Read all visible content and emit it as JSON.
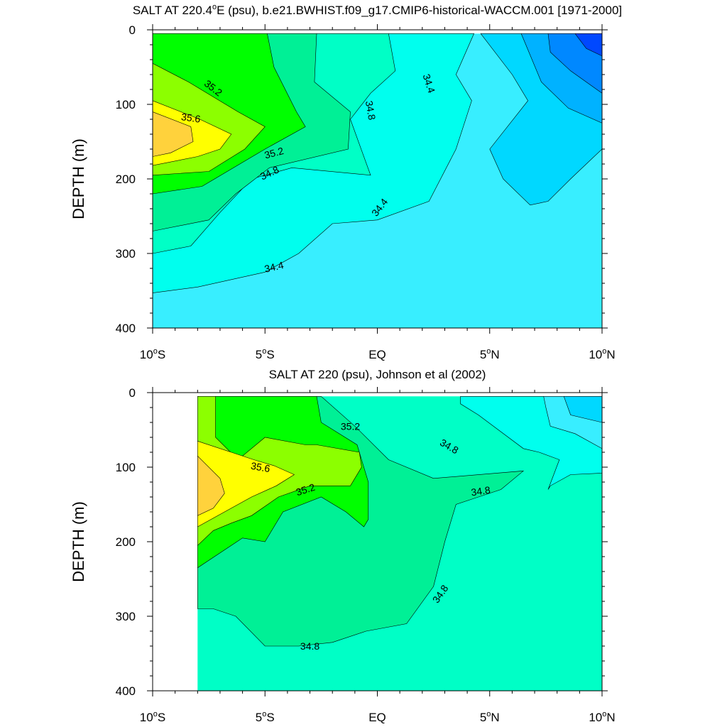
{
  "colors": {
    "s33.6": "#0048ff",
    "s33.8": "#0088ff",
    "s34.0": "#00b2ff",
    "s34.2": "#00d8ff",
    "s34.4": "#38eeff",
    "s34.6": "#00ffee",
    "s34.8": "#00ffc6",
    "s35.0": "#00f096",
    "s35.2": "#00ff00",
    "s35.4": "#8cff00",
    "s35.6": "#ffff00",
    "s35.8": "#ffd23c"
  },
  "chart_data": [
    {
      "type": "contour",
      "title": "SALT AT 220.4°E (psu), b.e21.BWHIST.f09_g17.CMIP6-historical-WACCM.001 [1971-2000]",
      "title_main": "SALT AT 220.4",
      "title_sup": "o",
      "title_rest": "E (psu), b.e21.BWHIST.f09_g17.CMIP6-historical-WACCM.001 [1971-2000]",
      "xlabel": "",
      "ylabel": "DEPTH (m)",
      "xlim": [
        -10,
        10
      ],
      "ylim": [
        400,
        0
      ],
      "x_ticks": [
        {
          "value": -10,
          "main": "10",
          "sup": "o",
          "rest": "S"
        },
        {
          "value": -5,
          "main": "5",
          "sup": "o",
          "rest": "S"
        },
        {
          "value": 0,
          "main": "EQ",
          "sup": "",
          "rest": ""
        },
        {
          "value": 5,
          "main": "5",
          "sup": "o",
          "rest": "N"
        },
        {
          "value": 10,
          "main": "10",
          "sup": "o",
          "rest": "N"
        }
      ],
      "y_ticks": [
        0,
        100,
        200,
        300,
        400
      ],
      "data_xlim": [
        -10,
        10
      ],
      "levels": [
        {
          "value": 34.6,
          "color": "s34.6",
          "polygon": [
            [
              -10,
              5
            ],
            [
              4.3,
              5
            ],
            [
              3.5,
              60
            ],
            [
              4.2,
              95
            ],
            [
              3.5,
              160
            ],
            [
              2.3,
              230
            ],
            [
              0,
              255
            ],
            [
              -2,
              260
            ],
            [
              -3.5,
              300
            ],
            [
              -5,
              325
            ],
            [
              -8,
              345
            ],
            [
              -10,
              353
            ]
          ]
        },
        {
          "value": 34.8,
          "color": "s34.8",
          "polygon": [
            [
              -10,
              5
            ],
            [
              0.5,
              5
            ],
            [
              0.8,
              55
            ],
            [
              -0.3,
              85
            ],
            [
              -1.2,
              120
            ],
            [
              -0.3,
              195
            ],
            [
              -3.8,
              185
            ],
            [
              -5.6,
              200
            ],
            [
              -7,
              245
            ],
            [
              -8.3,
              290
            ],
            [
              -10,
              300
            ]
          ]
        },
        {
          "value": 35.0,
          "color": "s35.0",
          "polygon": [
            [
              -10,
              5
            ],
            [
              -2.7,
              5
            ],
            [
              -2.8,
              70
            ],
            [
              -1.2,
              110
            ],
            [
              -1.3,
              160
            ],
            [
              -4.8,
              185
            ],
            [
              -6.3,
              220
            ],
            [
              -7.5,
              255
            ],
            [
              -10,
              270
            ]
          ]
        },
        {
          "value": 35.2,
          "color": "s35.2",
          "polygon": [
            [
              -10,
              5
            ],
            [
              -4.9,
              5
            ],
            [
              -4.6,
              50
            ],
            [
              -3.6,
              110
            ],
            [
              -3.2,
              130
            ],
            [
              -5.0,
              160
            ],
            [
              -7.8,
              210
            ],
            [
              -10,
              220
            ]
          ]
        },
        {
          "value": 35.4,
          "color": "s35.4",
          "polygon": [
            [
              -10,
              45
            ],
            [
              -8.4,
              70
            ],
            [
              -6.2,
              110
            ],
            [
              -5,
              130
            ],
            [
              -5.9,
              160
            ],
            [
              -7.5,
              190
            ],
            [
              -10,
              195
            ]
          ]
        },
        {
          "value": 35.6,
          "color": "s35.6",
          "polygon": [
            [
              -10,
              95
            ],
            [
              -7.9,
              120
            ],
            [
              -6.5,
              140
            ],
            [
              -7,
              160
            ],
            [
              -8,
              170
            ],
            [
              -10,
              182
            ]
          ]
        },
        {
          "value": 35.8,
          "color": "s35.8",
          "polygon": [
            [
              -10,
              110
            ],
            [
              -8.3,
              130
            ],
            [
              -8.2,
              150
            ],
            [
              -9.2,
              165
            ],
            [
              -10,
              170
            ]
          ]
        },
        {
          "value": 34.2,
          "color": "s34.2",
          "polygon": [
            [
              4.6,
              5
            ],
            [
              10,
              5
            ],
            [
              10,
              160
            ],
            [
              8.6,
              200
            ],
            [
              7.6,
              230
            ],
            [
              6.8,
              235
            ],
            [
              5.6,
              200
            ],
            [
              5,
              160
            ],
            [
              6.7,
              95
            ],
            [
              6,
              60
            ]
          ]
        },
        {
          "value": 34.0,
          "color": "s34.0",
          "polygon": [
            [
              6.4,
              5
            ],
            [
              10,
              5
            ],
            [
              10,
              125
            ],
            [
              8.5,
              105
            ],
            [
              7.3,
              70
            ]
          ]
        },
        {
          "value": 33.8,
          "color": "s33.8",
          "polygon": [
            [
              7.6,
              5
            ],
            [
              10,
              5
            ],
            [
              10,
              85
            ],
            [
              8.6,
              55
            ],
            [
              7.7,
              30
            ]
          ]
        },
        {
          "value": 33.6,
          "color": "s33.6",
          "polygon": [
            [
              8.8,
              5
            ],
            [
              10,
              5
            ],
            [
              10,
              35
            ],
            [
              9.3,
              25
            ]
          ]
        }
      ],
      "background_color": "s34.4",
      "contour_labels": [
        {
          "text": "35.2",
          "x": -7.3,
          "y": 78,
          "angle": 38
        },
        {
          "text": "35.6",
          "x": -8.3,
          "y": 118,
          "angle": 8
        },
        {
          "text": "35.2",
          "x": -4.6,
          "y": 165,
          "angle": -15
        },
        {
          "text": "34.8",
          "x": -4.8,
          "y": 192,
          "angle": -25
        },
        {
          "text": "34.8",
          "x": -0.3,
          "y": 108,
          "angle": 80
        },
        {
          "text": "34.4",
          "x": 2.3,
          "y": 72,
          "angle": 72
        },
        {
          "text": "34.4",
          "x": 0.1,
          "y": 238,
          "angle": -52
        },
        {
          "text": "34.4",
          "x": -4.6,
          "y": 318,
          "angle": -13
        }
      ]
    },
    {
      "type": "contour",
      "title": "SALT AT 220 (psu), Johnson et al (2002)",
      "title_main": "SALT AT 220 (psu), Johnson et al (2002)",
      "title_sup": "",
      "title_rest": "",
      "xlabel": "",
      "ylabel": "DEPTH (m)",
      "xlim": [
        -10,
        10
      ],
      "ylim": [
        400,
        0
      ],
      "x_ticks": [
        {
          "value": -10,
          "main": "10",
          "sup": "o",
          "rest": "S"
        },
        {
          "value": -5,
          "main": "5",
          "sup": "o",
          "rest": "S"
        },
        {
          "value": 0,
          "main": "EQ",
          "sup": "",
          "rest": ""
        },
        {
          "value": 5,
          "main": "5",
          "sup": "o",
          "rest": "N"
        },
        {
          "value": 10,
          "main": "10",
          "sup": "o",
          "rest": "N"
        }
      ],
      "y_ticks": [
        0,
        100,
        200,
        300,
        400
      ],
      "data_xlim": [
        -8,
        10
      ],
      "levels": [
        {
          "value": 35.0,
          "color": "s35.0",
          "polygon": [
            [
              -8,
              5
            ],
            [
              -2.5,
              5
            ],
            [
              -1,
              45
            ],
            [
              0.5,
              90
            ],
            [
              2.5,
              115
            ],
            [
              6.5,
              105
            ],
            [
              5.5,
              130
            ],
            [
              4.5,
              140
            ],
            [
              3.5,
              150
            ],
            [
              3,
              200
            ],
            [
              2.5,
              260
            ],
            [
              1.3,
              310
            ],
            [
              -0.5,
              320
            ],
            [
              -2,
              335
            ],
            [
              -3.5,
              340
            ],
            [
              -5,
              340
            ],
            [
              -6.3,
              300
            ],
            [
              -7.3,
              290
            ],
            [
              -8,
              290
            ]
          ]
        },
        {
          "value": 35.2,
          "color": "s35.2",
          "polygon": [
            [
              -8,
              5
            ],
            [
              -2.7,
              5
            ],
            [
              -2.5,
              40
            ],
            [
              -0.9,
              70
            ],
            [
              -0.4,
              120
            ],
            [
              -0.4,
              170
            ],
            [
              -0.6,
              180
            ],
            [
              -1.4,
              160
            ],
            [
              -2.5,
              140
            ],
            [
              -4.2,
              160
            ],
            [
              -5,
              200
            ],
            [
              -6,
              195
            ],
            [
              -8,
              235
            ]
          ]
        },
        {
          "value": 35.4,
          "color": "s35.4",
          "polygon": [
            [
              -8,
              5
            ],
            [
              -7.2,
              5
            ],
            [
              -7.2,
              60
            ],
            [
              -6.2,
              90
            ],
            [
              -5,
              60
            ],
            [
              -3.2,
              70
            ],
            [
              -2.7,
              70
            ],
            [
              -0.8,
              80
            ],
            [
              -0.7,
              100
            ],
            [
              -1.2,
              125
            ],
            [
              -2,
              125
            ],
            [
              -3,
              125
            ],
            [
              -4.4,
              140
            ],
            [
              -5.6,
              165
            ],
            [
              -6.5,
              175
            ],
            [
              -7.3,
              185
            ],
            [
              -8,
              205
            ]
          ]
        },
        {
          "value": 35.6,
          "color": "s35.6",
          "polygon": [
            [
              -8,
              65
            ],
            [
              -6.5,
              80
            ],
            [
              -5.5,
              90
            ],
            [
              -4.6,
              98
            ],
            [
              -3.7,
              110
            ],
            [
              -4.5,
              125
            ],
            [
              -5.6,
              140
            ],
            [
              -6.8,
              160
            ],
            [
              -8,
              180
            ]
          ]
        },
        {
          "value": 35.8,
          "color": "s35.8",
          "polygon": [
            [
              -8,
              85
            ],
            [
              -7,
              115
            ],
            [
              -6.8,
              135
            ],
            [
              -7.3,
              155
            ],
            [
              -8,
              165
            ]
          ]
        },
        {
          "value": 34.6,
          "color": "s34.6",
          "polygon": [
            [
              3.7,
              5
            ],
            [
              10,
              5
            ],
            [
              10,
              108
            ],
            [
              8.6,
              110
            ],
            [
              7.7,
              125
            ],
            [
              7.6,
              130
            ],
            [
              8.1,
              90
            ],
            [
              7.2,
              80
            ],
            [
              6.5,
              75
            ],
            [
              4.5,
              30
            ],
            [
              3.7,
              15
            ]
          ]
        },
        {
          "value": 34.4,
          "color": "s34.4",
          "polygon": [
            [
              7.4,
              5
            ],
            [
              10,
              5
            ],
            [
              10,
              75
            ],
            [
              8.8,
              55
            ],
            [
              7.7,
              45
            ],
            [
              7.5,
              20
            ]
          ]
        },
        {
          "value": 34.2,
          "color": "s34.2",
          "polygon": [
            [
              8.3,
              5
            ],
            [
              10,
              5
            ],
            [
              10,
              40
            ],
            [
              8.6,
              30
            ]
          ]
        }
      ],
      "background_color": "s34.8",
      "contour_labels": [
        {
          "text": "35.2",
          "x": -1.2,
          "y": 45,
          "angle": 0
        },
        {
          "text": "35.6",
          "x": -5.2,
          "y": 100,
          "angle": 10
        },
        {
          "text": "35.2",
          "x": -3.2,
          "y": 130,
          "angle": -18
        },
        {
          "text": "34.8",
          "x": 3.2,
          "y": 72,
          "angle": 30
        },
        {
          "text": "34.8",
          "x": 4.6,
          "y": 132,
          "angle": -8
        },
        {
          "text": "34.8",
          "x": 2.8,
          "y": 270,
          "angle": -55
        },
        {
          "text": "34.8",
          "x": -3.0,
          "y": 340,
          "angle": 0
        }
      ]
    }
  ]
}
